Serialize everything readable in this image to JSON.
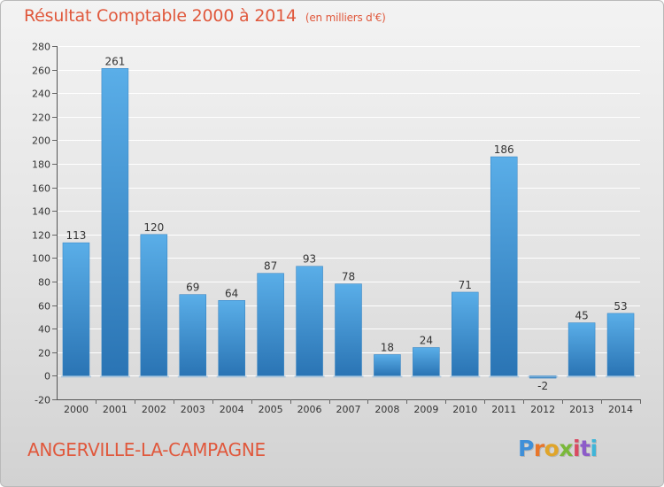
{
  "header": {
    "title": "Résultat Comptable 2000 à 2014",
    "subtitle": "(en milliers d'€)"
  },
  "footer": {
    "location": "ANGERVILLE-LA-CAMPAGNE",
    "logo_text": "Proxiti",
    "logo_parts": [
      "P",
      "r",
      "o",
      "x",
      "i",
      "t",
      "i"
    ]
  },
  "colors": {
    "title": "#e0583c",
    "bar_top": "#5aaee8",
    "bar_bottom": "#2a74b4"
  },
  "chart_data": {
    "type": "bar",
    "title": "Résultat Comptable 2000 à 2014",
    "subtitle": "(en milliers d'€)",
    "categories": [
      "2000",
      "2001",
      "2002",
      "2003",
      "2004",
      "2005",
      "2006",
      "2007",
      "2008",
      "2009",
      "2010",
      "2011",
      "2012",
      "2013",
      "2014"
    ],
    "values": [
      113,
      261,
      120,
      69,
      64,
      87,
      93,
      78,
      18,
      24,
      71,
      186,
      -2,
      45,
      53
    ],
    "data_labels": [
      "113",
      "261",
      "120",
      "69",
      "64",
      "87",
      "93",
      "78",
      "18",
      "24",
      "71",
      "186",
      "-2",
      "45",
      "53"
    ],
    "xlabel": "",
    "ylabel": "",
    "ylim": [
      -20,
      280
    ],
    "yticks": [
      -20,
      0,
      20,
      40,
      60,
      80,
      100,
      120,
      140,
      160,
      180,
      200,
      220,
      240,
      260,
      280
    ],
    "grid": true,
    "legend": "none"
  }
}
